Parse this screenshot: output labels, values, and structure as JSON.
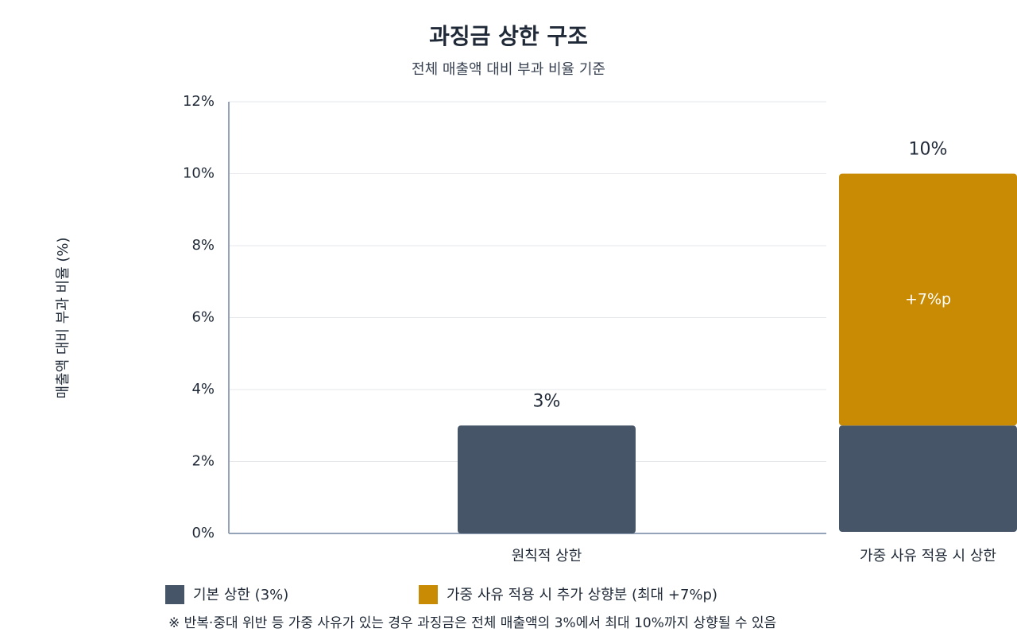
{
  "chart_data": {
    "type": "stacked_bar",
    "title": "과징금 상한 구조",
    "subtitle": "전체 매출액 대비 부과 비율 기준",
    "y_label": "매출액 대비 부과 비율 (%)",
    "categories": [
      "원칙적 상한",
      "가중 사유 적용 시 상한"
    ],
    "series": [
      {
        "name": "기본 상한 (3%)",
        "color": "#475569",
        "values": [
          3,
          3
        ]
      },
      {
        "name": "가중 사유 적용 시 추가 상향분 (최대 +7%p)",
        "color": "#c98a04",
        "values": [
          null,
          7
        ],
        "value_labels": [
          null,
          "+7%p"
        ]
      }
    ],
    "totals": [
      3,
      10
    ],
    "total_labels": [
      "3%",
      "10%"
    ],
    "ylim": [
      0,
      12
    ],
    "yticks": [
      {
        "value": 0,
        "label": "0%"
      },
      {
        "value": 2,
        "label": "2%"
      },
      {
        "value": 4,
        "label": "4%"
      },
      {
        "value": 6,
        "label": "6%"
      },
      {
        "value": 8,
        "label": "8%"
      },
      {
        "value": 10,
        "label": "10%"
      },
      {
        "value": 12,
        "label": "12%"
      }
    ],
    "grid": true,
    "legend": "bottom",
    "footnote": "※ 반복·중대 위반 등 가중 사유가 있는 경우 과징금은 전체 매출액의 3%에서 최대 10%까지 상향될 수 있음"
  }
}
